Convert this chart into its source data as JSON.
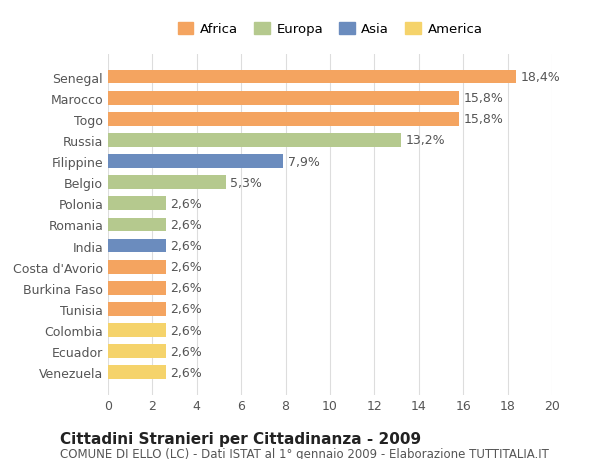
{
  "countries": [
    "Venezuela",
    "Ecuador",
    "Colombia",
    "Tunisia",
    "Burkina Faso",
    "Costa d'Avorio",
    "India",
    "Romania",
    "Polonia",
    "Belgio",
    "Filippine",
    "Russia",
    "Togo",
    "Marocco",
    "Senegal"
  ],
  "values": [
    2.6,
    2.6,
    2.6,
    2.6,
    2.6,
    2.6,
    2.6,
    2.6,
    2.6,
    5.3,
    7.9,
    13.2,
    15.8,
    15.8,
    18.4
  ],
  "labels": [
    "2,6%",
    "2,6%",
    "2,6%",
    "2,6%",
    "2,6%",
    "2,6%",
    "2,6%",
    "2,6%",
    "2,6%",
    "5,3%",
    "7,9%",
    "13,2%",
    "15,8%",
    "15,8%",
    "18,4%"
  ],
  "continents": [
    "America",
    "America",
    "America",
    "Africa",
    "Africa",
    "Africa",
    "Asia",
    "Europa",
    "Europa",
    "Europa",
    "Asia",
    "Europa",
    "Africa",
    "Africa",
    "Africa"
  ],
  "colors": {
    "Africa": "#F4A460",
    "Europa": "#B5C98E",
    "Asia": "#6B8CBE",
    "America": "#F5D36B"
  },
  "legend_order": [
    "Africa",
    "Europa",
    "Asia",
    "America"
  ],
  "legend_colors": {
    "Africa": "#F4A460",
    "Europa": "#B5C98E",
    "Asia": "#6B8CBE",
    "America": "#F5D36B"
  },
  "xlim": [
    0,
    20
  ],
  "xticks": [
    0,
    2,
    4,
    6,
    8,
    10,
    12,
    14,
    16,
    18,
    20
  ],
  "title": "Cittadini Stranieri per Cittadinanza - 2009",
  "subtitle": "COMUNE DI ELLO (LC) - Dati ISTAT al 1° gennaio 2009 - Elaborazione TUTTITALIA.IT",
  "background_color": "#ffffff",
  "grid_color": "#dddddd",
  "bar_height": 0.65,
  "label_fontsize": 9,
  "tick_fontsize": 9,
  "title_fontsize": 11,
  "subtitle_fontsize": 8.5
}
